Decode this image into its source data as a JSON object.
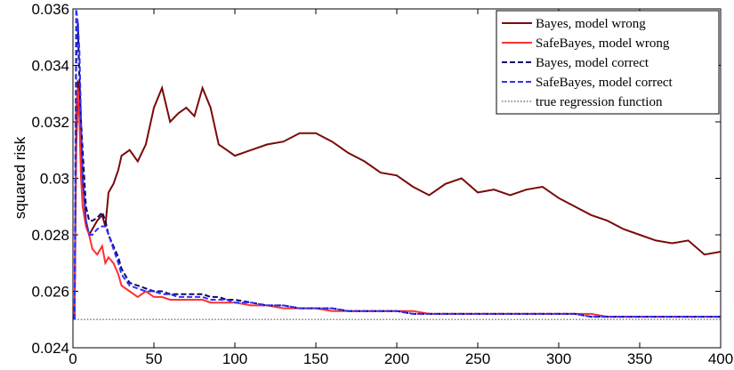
{
  "chart_data": {
    "type": "line",
    "y_label": "squared risk",
    "x": [
      1,
      2,
      3,
      4,
      5,
      6,
      8,
      10,
      12,
      15,
      18,
      20,
      22,
      25,
      28,
      30,
      35,
      40,
      45,
      50,
      55,
      60,
      65,
      70,
      75,
      80,
      85,
      90,
      95,
      100,
      110,
      120,
      130,
      140,
      150,
      160,
      170,
      180,
      190,
      200,
      210,
      220,
      230,
      240,
      250,
      260,
      270,
      280,
      290,
      300,
      310,
      320,
      330,
      340,
      350,
      360,
      370,
      380,
      390,
      400
    ],
    "xlim": [
      0,
      400
    ],
    "xticks": [
      0,
      50,
      100,
      150,
      200,
      250,
      300,
      350,
      400
    ],
    "ylim": [
      0.024,
      0.036
    ],
    "yticks": [
      0.024,
      0.026,
      0.028,
      0.03,
      0.032,
      0.034,
      0.036
    ],
    "legend": "upper right",
    "series": [
      {
        "name": "Bayes, model wrong",
        "color": "#7a0a0a",
        "line_style": "solid",
        "values": [
          0.025,
          0.031,
          0.0334,
          0.0333,
          0.0315,
          0.03,
          0.0285,
          0.028,
          0.0282,
          0.0285,
          0.0287,
          0.0283,
          0.0295,
          0.0298,
          0.0303,
          0.0308,
          0.031,
          0.0306,
          0.0312,
          0.0325,
          0.0332,
          0.032,
          0.0323,
          0.0325,
          0.0322,
          0.0332,
          0.0325,
          0.0312,
          0.031,
          0.0308,
          0.031,
          0.0312,
          0.0313,
          0.0316,
          0.0316,
          0.0313,
          0.0309,
          0.0306,
          0.0302,
          0.0301,
          0.0297,
          0.0294,
          0.0298,
          0.03,
          0.0295,
          0.0296,
          0.0294,
          0.0296,
          0.0297,
          0.0293,
          0.029,
          0.0287,
          0.0285,
          0.0282,
          0.028,
          0.0278,
          0.0277,
          0.0278,
          0.0273,
          0.0274
        ]
      },
      {
        "name": "SafeBayes, model wrong",
        "color": "#ff3030",
        "line_style": "solid",
        "values": [
          0.025,
          0.0325,
          0.0332,
          0.032,
          0.03,
          0.029,
          0.0283,
          0.028,
          0.0275,
          0.0273,
          0.0276,
          0.027,
          0.0272,
          0.027,
          0.0266,
          0.0262,
          0.026,
          0.0258,
          0.026,
          0.0258,
          0.0258,
          0.0257,
          0.0257,
          0.0257,
          0.0257,
          0.0257,
          0.0256,
          0.0256,
          0.0256,
          0.0256,
          0.0255,
          0.0255,
          0.0254,
          0.0254,
          0.0254,
          0.0253,
          0.0253,
          0.0253,
          0.0253,
          0.0253,
          0.0253,
          0.0252,
          0.0252,
          0.0252,
          0.0252,
          0.0252,
          0.0252,
          0.0252,
          0.0252,
          0.0252,
          0.0252,
          0.0252,
          0.0251,
          0.0251,
          0.0251,
          0.0251,
          0.0251,
          0.0251,
          0.0251,
          0.0251
        ]
      },
      {
        "name": "Bayes, model correct",
        "color": "#0a0a6e",
        "line_style": "dashed",
        "values": [
          0.025,
          0.034,
          0.0355,
          0.0335,
          0.032,
          0.031,
          0.029,
          0.0285,
          0.0285,
          0.0286,
          0.0288,
          0.0285,
          0.028,
          0.0276,
          0.0272,
          0.0268,
          0.0263,
          0.0262,
          0.0261,
          0.026,
          0.026,
          0.0259,
          0.0259,
          0.0259,
          0.0259,
          0.0259,
          0.0258,
          0.0258,
          0.0257,
          0.0257,
          0.0256,
          0.0255,
          0.0255,
          0.0254,
          0.0254,
          0.0254,
          0.0253,
          0.0253,
          0.0253,
          0.0253,
          0.0252,
          0.0252,
          0.0252,
          0.0252,
          0.0252,
          0.0252,
          0.0252,
          0.0252,
          0.0252,
          0.0252,
          0.0252,
          0.0251,
          0.0251,
          0.0251,
          0.0251,
          0.0251,
          0.0251,
          0.0251,
          0.0251,
          0.0251
        ]
      },
      {
        "name": "SafeBayes, model correct",
        "color": "#3030ff",
        "line_style": "dashed",
        "values": [
          0.025,
          0.036,
          0.0355,
          0.0345,
          0.032,
          0.03,
          0.0285,
          0.028,
          0.028,
          0.0282,
          0.0283,
          0.0283,
          0.028,
          0.0275,
          0.027,
          0.0266,
          0.0262,
          0.0261,
          0.026,
          0.026,
          0.0259,
          0.0259,
          0.0258,
          0.0258,
          0.0258,
          0.0258,
          0.0257,
          0.0257,
          0.0257,
          0.0256,
          0.0256,
          0.0255,
          0.0255,
          0.0254,
          0.0254,
          0.0254,
          0.0253,
          0.0253,
          0.0253,
          0.0253,
          0.0252,
          0.0252,
          0.0252,
          0.0252,
          0.0252,
          0.0252,
          0.0252,
          0.0252,
          0.0252,
          0.0252,
          0.0252,
          0.0251,
          0.0251,
          0.0251,
          0.0251,
          0.0251,
          0.0251,
          0.0251,
          0.0251,
          0.0251
        ]
      },
      {
        "name": "true regression function",
        "color": "#555555",
        "line_style": "dotted",
        "x": [
          1,
          400
        ],
        "values": [
          0.025,
          0.025
        ]
      }
    ]
  }
}
